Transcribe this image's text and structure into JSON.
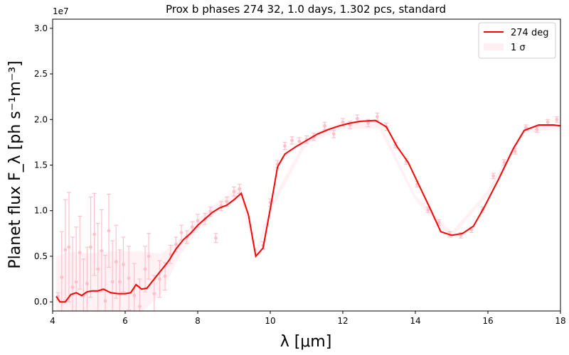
{
  "chart_data": {
    "type": "line",
    "title": "Prox b phases 274 32, 1.0 days, 1.302 pcs, standard",
    "xlabel": "λ [μm]",
    "ylabel": "Planet flux F_λ [ph s⁻¹m⁻³]",
    "offset_text": "1e7",
    "xlim": [
      4,
      18
    ],
    "ylim": [
      -1000000,
      31000000
    ],
    "x_ticks": [
      4,
      6,
      8,
      10,
      12,
      14,
      16,
      18
    ],
    "x_tick_labels": [
      "4",
      "6",
      "8",
      "10",
      "12",
      "14",
      "16",
      "18"
    ],
    "y_ticks": [
      0,
      5000000,
      10000000,
      15000000,
      20000000,
      25000000,
      30000000
    ],
    "y_tick_labels": [
      "0.0",
      "0.5",
      "1.0",
      "1.5",
      "2.0",
      "2.5",
      "3.0"
    ],
    "grid": false,
    "legend_position": "top-right",
    "legend": [
      {
        "label": "274 deg",
        "kind": "line",
        "color": "#ff0000"
      },
      {
        "label": "1 σ",
        "kind": "patch",
        "color": "#ffc0cb"
      }
    ],
    "series": [
      {
        "name": "274 deg",
        "color": "#ff0000",
        "x": [
          4.1,
          4.2,
          4.35,
          4.5,
          4.65,
          4.8,
          4.95,
          5.1,
          5.25,
          5.4,
          5.6,
          5.8,
          6.0,
          6.15,
          6.3,
          6.45,
          6.6,
          6.8,
          7.0,
          7.2,
          7.4,
          7.6,
          7.8,
          8.0,
          8.2,
          8.4,
          8.6,
          8.8,
          9.0,
          9.2,
          9.4,
          9.6,
          9.8,
          10.0,
          10.2,
          10.4,
          10.7,
          11.0,
          11.3,
          11.6,
          11.9,
          12.2,
          12.5,
          12.9,
          13.2,
          13.5,
          13.8,
          14.1,
          14.4,
          14.7,
          15.0,
          15.3,
          15.6,
          15.9,
          16.3,
          16.7,
          17.0,
          17.4,
          17.8,
          18.0
        ],
        "y": [
          600000,
          0,
          0,
          800000,
          1000000,
          700000,
          1100000,
          1200000,
          1200000,
          1400000,
          1000000,
          900000,
          900000,
          1000000,
          1900000,
          1400000,
          1500000,
          2500000,
          3500000,
          4500000,
          5800000,
          6800000,
          7500000,
          8400000,
          9100000,
          9800000,
          10300000,
          10600000,
          11200000,
          11900000,
          9500000,
          5000000,
          5900000,
          10200000,
          14800000,
          16200000,
          17000000,
          17700000,
          18400000,
          18900000,
          19300000,
          19600000,
          19800000,
          19900000,
          19200000,
          17000000,
          15300000,
          12800000,
          10300000,
          7700000,
          7300000,
          7500000,
          8300000,
          10400000,
          13500000,
          16800000,
          18800000,
          19400000,
          19400000,
          19300000
        ]
      }
    ],
    "sigma_band": {
      "x": [
        4.1,
        4.5,
        5.0,
        5.5,
        6.0,
        6.5,
        7.0,
        7.5,
        8.0,
        8.5,
        9.0,
        9.2,
        9.6,
        10.0,
        11.0,
        12.0,
        13.0,
        14.0,
        15.0,
        16.0,
        17.0,
        18.0
      ],
      "upper": [
        5000000,
        5500000,
        5300000,
        5500000,
        5600000,
        5500000,
        5300000,
        6800000,
        9000000,
        10800000,
        12200000,
        12600000,
        5500000,
        10700000,
        18100000,
        19800000,
        19800000,
        11700000,
        7700000,
        12300000,
        19100000,
        19600000
      ],
      "lower": [
        -1000000,
        -1000000,
        -1000000,
        -1000000,
        -1000000,
        -1000000,
        900000,
        5000000,
        7800000,
        9800000,
        11100000,
        11300000,
        4600000,
        9800000,
        17300000,
        19000000,
        19000000,
        11100000,
        7000000,
        11700000,
        18500000,
        19000000
      ]
    },
    "observations": {
      "color": "#ffc0cb",
      "x": [
        4.15,
        4.25,
        4.35,
        4.45,
        4.55,
        4.65,
        4.75,
        4.85,
        4.95,
        5.05,
        5.15,
        5.25,
        5.35,
        5.45,
        5.55,
        5.65,
        5.75,
        5.85,
        5.95,
        6.1,
        6.25,
        6.4,
        6.55,
        6.65,
        6.8,
        6.95,
        7.1,
        7.25,
        7.4,
        7.55,
        7.7,
        7.85,
        8.0,
        8.2,
        8.35,
        8.5,
        8.65,
        8.8,
        9.0,
        9.15,
        9.8,
        10.0,
        10.2,
        10.4,
        10.6,
        10.8,
        11.0,
        11.2,
        11.5,
        11.75,
        12.0,
        12.2,
        12.4,
        12.7,
        12.95,
        13.2,
        13.45,
        13.75,
        14.05,
        14.35,
        14.65,
        14.95,
        15.25,
        15.55,
        15.85,
        16.15,
        16.45,
        16.75,
        17.05,
        17.35,
        17.65,
        17.9
      ],
      "y": [
        600000,
        2700000,
        5700000,
        6000000,
        1600000,
        2200000,
        5400000,
        700000,
        2000000,
        6000000,
        7400000,
        3600000,
        5600000,
        100000,
        7800000,
        2200000,
        4400000,
        2200000,
        4100000,
        2600000,
        700000,
        -500000,
        3600000,
        5000000,
        900000,
        2500000,
        2800000,
        5200000,
        6300000,
        7600000,
        7100000,
        8200000,
        8900000,
        9100000,
        9900000,
        7000000,
        10500000,
        11000000,
        12100000,
        12400000,
        6200000,
        10900000,
        15100000,
        17100000,
        17700000,
        17600000,
        17800000,
        18100000,
        19300000,
        18400000,
        19700000,
        19400000,
        20100000,
        19600000,
        20300000,
        19200000,
        17200000,
        15400000,
        12900000,
        10100000,
        8700000,
        7400000,
        7300000,
        7900000,
        10100000,
        13800000,
        15300000,
        16500000,
        19100000,
        18900000,
        19700000,
        20000000
      ],
      "err": [
        400000,
        5000000,
        5500000,
        6000000,
        5500000,
        6000000,
        4000000,
        4000000,
        4000000,
        5500000,
        4500000,
        5000000,
        4500000,
        5000000,
        4000000,
        4500000,
        4000000,
        3500000,
        3000000,
        3500000,
        3500000,
        3000000,
        2500000,
        2500000,
        2000000,
        2000000,
        1500000,
        1000000,
        800000,
        800000,
        700000,
        600000,
        700000,
        600000,
        500000,
        500000,
        500000,
        500000,
        500000,
        500000,
        400000,
        400000,
        400000,
        400000,
        400000,
        400000,
        400000,
        400000,
        400000,
        400000,
        400000,
        400000,
        400000,
        400000,
        400000,
        400000,
        300000,
        300000,
        300000,
        300000,
        300000,
        300000,
        300000,
        300000,
        300000,
        300000,
        300000,
        300000,
        300000,
        300000,
        300000,
        300000
      ]
    }
  }
}
